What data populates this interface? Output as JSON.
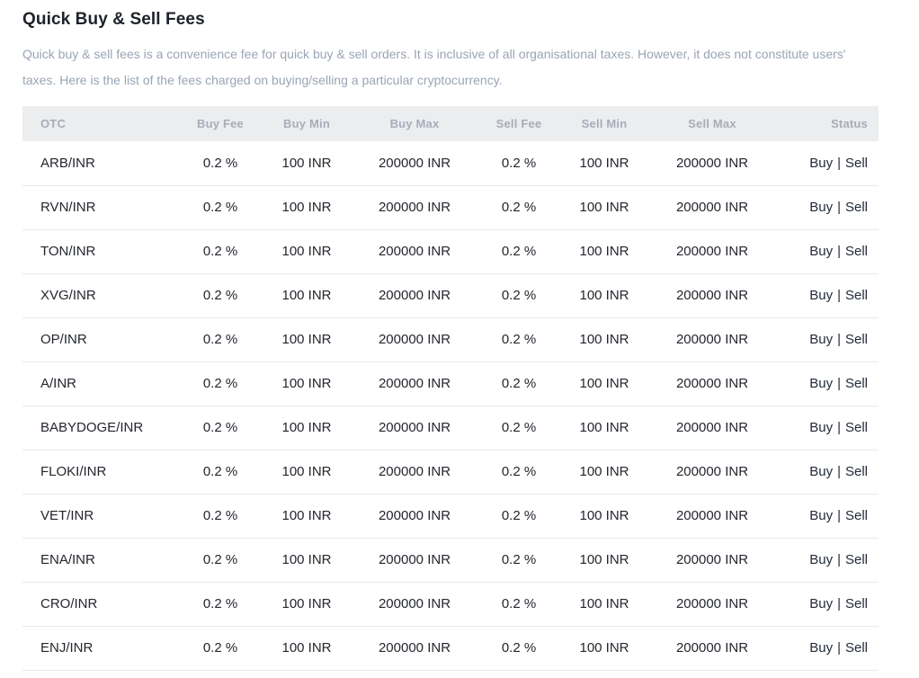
{
  "page": {
    "title": "Quick Buy & Sell Fees",
    "description": "Quick buy & sell fees is a convenience fee for quick buy & sell orders. It is inclusive of all organisational taxes. However, it does not constitute users' taxes. Here is the list of the fees charged on buying/selling a particular cryptocurrency."
  },
  "table": {
    "columns": [
      {
        "key": "otc",
        "label": "OTC"
      },
      {
        "key": "buy_fee",
        "label": "Buy Fee"
      },
      {
        "key": "buy_min",
        "label": "Buy Min"
      },
      {
        "key": "buy_max",
        "label": "Buy Max"
      },
      {
        "key": "sell_fee",
        "label": "Sell Fee"
      },
      {
        "key": "sell_min",
        "label": "Sell Min"
      },
      {
        "key": "sell_max",
        "label": "Sell Max"
      },
      {
        "key": "status",
        "label": "Status"
      }
    ],
    "status_separator": "|",
    "rows": [
      {
        "otc": "ARB/INR",
        "buy_fee": "0.2 %",
        "buy_min": "100 INR",
        "buy_max": "200000 INR",
        "sell_fee": "0.2 %",
        "sell_min": "100 INR",
        "sell_max": "200000 INR",
        "status_buy": "Buy",
        "status_sell": "Sell"
      },
      {
        "otc": "RVN/INR",
        "buy_fee": "0.2 %",
        "buy_min": "100 INR",
        "buy_max": "200000 INR",
        "sell_fee": "0.2 %",
        "sell_min": "100 INR",
        "sell_max": "200000 INR",
        "status_buy": "Buy",
        "status_sell": "Sell"
      },
      {
        "otc": "TON/INR",
        "buy_fee": "0.2 %",
        "buy_min": "100 INR",
        "buy_max": "200000 INR",
        "sell_fee": "0.2 %",
        "sell_min": "100 INR",
        "sell_max": "200000 INR",
        "status_buy": "Buy",
        "status_sell": "Sell"
      },
      {
        "otc": "XVG/INR",
        "buy_fee": "0.2 %",
        "buy_min": "100 INR",
        "buy_max": "200000 INR",
        "sell_fee": "0.2 %",
        "sell_min": "100 INR",
        "sell_max": "200000 INR",
        "status_buy": "Buy",
        "status_sell": "Sell"
      },
      {
        "otc": "OP/INR",
        "buy_fee": "0.2 %",
        "buy_min": "100 INR",
        "buy_max": "200000 INR",
        "sell_fee": "0.2 %",
        "sell_min": "100 INR",
        "sell_max": "200000 INR",
        "status_buy": "Buy",
        "status_sell": "Sell"
      },
      {
        "otc": "A/INR",
        "buy_fee": "0.2 %",
        "buy_min": "100 INR",
        "buy_max": "200000 INR",
        "sell_fee": "0.2 %",
        "sell_min": "100 INR",
        "sell_max": "200000 INR",
        "status_buy": "Buy",
        "status_sell": "Sell"
      },
      {
        "otc": "BABYDOGE/INR",
        "buy_fee": "0.2 %",
        "buy_min": "100 INR",
        "buy_max": "200000 INR",
        "sell_fee": "0.2 %",
        "sell_min": "100 INR",
        "sell_max": "200000 INR",
        "status_buy": "Buy",
        "status_sell": "Sell"
      },
      {
        "otc": "FLOKI/INR",
        "buy_fee": "0.2 %",
        "buy_min": "100 INR",
        "buy_max": "200000 INR",
        "sell_fee": "0.2 %",
        "sell_min": "100 INR",
        "sell_max": "200000 INR",
        "status_buy": "Buy",
        "status_sell": "Sell"
      },
      {
        "otc": "VET/INR",
        "buy_fee": "0.2 %",
        "buy_min": "100 INR",
        "buy_max": "200000 INR",
        "sell_fee": "0.2 %",
        "sell_min": "100 INR",
        "sell_max": "200000 INR",
        "status_buy": "Buy",
        "status_sell": "Sell"
      },
      {
        "otc": "ENA/INR",
        "buy_fee": "0.2 %",
        "buy_min": "100 INR",
        "buy_max": "200000 INR",
        "sell_fee": "0.2 %",
        "sell_min": "100 INR",
        "sell_max": "200000 INR",
        "status_buy": "Buy",
        "status_sell": "Sell"
      },
      {
        "otc": "CRO/INR",
        "buy_fee": "0.2 %",
        "buy_min": "100 INR",
        "buy_max": "200000 INR",
        "sell_fee": "0.2 %",
        "sell_min": "100 INR",
        "sell_max": "200000 INR",
        "status_buy": "Buy",
        "status_sell": "Sell"
      },
      {
        "otc": "ENJ/INR",
        "buy_fee": "0.2 %",
        "buy_min": "100 INR",
        "buy_max": "200000 INR",
        "sell_fee": "0.2 %",
        "sell_min": "100 INR",
        "sell_max": "200000 INR",
        "status_buy": "Buy",
        "status_sell": "Sell"
      }
    ]
  },
  "colors": {
    "title_text": "#1E222B",
    "description_text": "#9AA5B4",
    "header_bg": "#ECEDEF",
    "header_text": "#A7ADB9",
    "body_text": "#23262E",
    "row_border": "#E7E9EC",
    "link_text": "#222B38",
    "page_bg": "#FFFFFF"
  }
}
